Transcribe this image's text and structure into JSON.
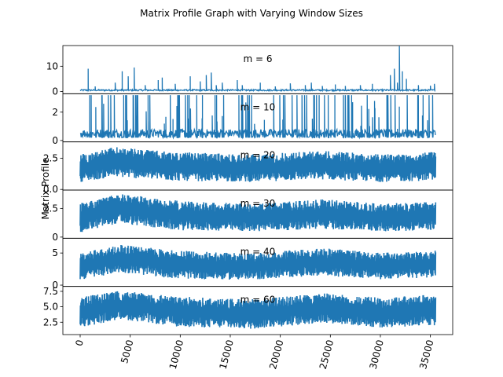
{
  "chart_data": {
    "type": "line",
    "title": "Matrix Profile Graph with Varying Window Sizes",
    "ylabel": "Matrix Profile",
    "xlabel": "",
    "x_range": [
      0,
      35500
    ],
    "x_ticks": [
      0,
      5000,
      10000,
      15000,
      20000,
      25000,
      30000,
      35000
    ],
    "x_tick_labels": [
      "0",
      "5000",
      "10000",
      "15000",
      "20000",
      "25000",
      "30000",
      "35000"
    ],
    "x_tick_rotation": "rotated ~75°",
    "series_color": "#1f77b4",
    "subplots": [
      {
        "label": "m = 6",
        "ylim": [
          -0.9,
          18.2
        ],
        "y_ticks": [
          0,
          10
        ],
        "y_tick_labels": [
          "0",
          "10"
        ],
        "baseline": 0.5,
        "noise": 0.6,
        "spikes": [
          [
            800,
            9
          ],
          [
            1500,
            2
          ],
          [
            3500,
            3.5
          ],
          [
            4200,
            8
          ],
          [
            4800,
            6
          ],
          [
            5400,
            9.5
          ],
          [
            6500,
            2.5
          ],
          [
            7800,
            4.5
          ],
          [
            8200,
            5.5
          ],
          [
            9500,
            3
          ],
          [
            11000,
            6
          ],
          [
            12000,
            4
          ],
          [
            12600,
            6.5
          ],
          [
            13100,
            7.5
          ],
          [
            13600,
            2.5
          ],
          [
            14200,
            3.5
          ],
          [
            15700,
            4.5
          ],
          [
            16200,
            2.5
          ],
          [
            18000,
            3.5
          ],
          [
            19500,
            2
          ],
          [
            21000,
            3.2
          ],
          [
            22500,
            2.5
          ],
          [
            23100,
            3.5
          ],
          [
            24200,
            2.2
          ],
          [
            25500,
            2.8
          ],
          [
            26500,
            2.2
          ],
          [
            28000,
            2.5
          ],
          [
            29200,
            3
          ],
          [
            31000,
            6.5
          ],
          [
            31400,
            9
          ],
          [
            31700,
            3.5
          ],
          [
            31900,
            18
          ],
          [
            32200,
            8
          ],
          [
            32600,
            5
          ],
          [
            33800,
            2.5
          ],
          [
            35000,
            2.3
          ],
          [
            35400,
            3
          ]
        ],
        "fill": false
      },
      {
        "label": "m = 10",
        "ylim": [
          -0.1,
          3.3
        ],
        "y_ticks": [
          0,
          2
        ],
        "y_tick_labels": [
          "0",
          "2"
        ],
        "baseline": 0.5,
        "noise": 0.6,
        "spike_height": 3.2,
        "spike_count": 110,
        "fill": false
      },
      {
        "label": "m = 20",
        "ylim": [
          -0.05,
          3.8
        ],
        "y_ticks": [
          0.0,
          2.5
        ],
        "y_tick_labels": [
          "0.0",
          "2.5"
        ],
        "band": [
          [
            0,
            0.6,
            2.8
          ],
          [
            3500,
            1.0,
            3.4
          ],
          [
            9000,
            0.7,
            3.0
          ],
          [
            17000,
            0.6,
            2.8
          ],
          [
            24000,
            0.8,
            3.1
          ],
          [
            30000,
            0.6,
            2.8
          ],
          [
            35500,
            0.7,
            3.0
          ]
        ],
        "fill": true
      },
      {
        "label": "m = 30",
        "ylim": [
          -0.1,
          4.1
        ],
        "y_ticks": [
          0,
          2.5
        ],
        "y_tick_labels": [
          "0",
          "2.5"
        ],
        "band": [
          [
            0,
            0.4,
            3.0
          ],
          [
            3800,
            1.2,
            3.8
          ],
          [
            9500,
            0.6,
            3.2
          ],
          [
            17000,
            0.5,
            2.9
          ],
          [
            24500,
            0.7,
            3.3
          ],
          [
            30000,
            0.5,
            2.9
          ],
          [
            35500,
            0.6,
            3.1
          ]
        ],
        "fill": true
      },
      {
        "label": "m = 40",
        "ylim": [
          -0.2,
          7.3
        ],
        "y_ticks": [
          0,
          5
        ],
        "y_tick_labels": [
          "0",
          "5"
        ],
        "band": [
          [
            0,
            0.8,
            5.0
          ],
          [
            4000,
            2.0,
            6.3
          ],
          [
            9500,
            1.0,
            5.4
          ],
          [
            17000,
            0.8,
            4.9
          ],
          [
            24000,
            1.5,
            5.8
          ],
          [
            30000,
            0.9,
            5.0
          ],
          [
            35500,
            1.2,
            5.5
          ]
        ],
        "fill": true
      },
      {
        "label": "m = 60",
        "ylim": [
          0.5,
          8.3
        ],
        "y_ticks": [
          2.5,
          5.0,
          7.5
        ],
        "y_tick_labels": [
          "2.5",
          "5.0",
          "7.5"
        ],
        "band": [
          [
            0,
            1.6,
            6.6
          ],
          [
            4000,
            3.0,
            7.6
          ],
          [
            9500,
            1.8,
            6.7
          ],
          [
            17000,
            1.4,
            6.2
          ],
          [
            24500,
            2.4,
            7.2
          ],
          [
            30000,
            1.6,
            6.5
          ],
          [
            35500,
            2.0,
            7.0
          ]
        ],
        "fill": true
      }
    ]
  }
}
